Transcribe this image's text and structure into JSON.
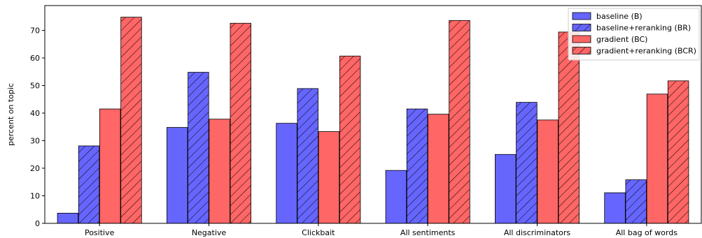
{
  "chart_data": {
    "type": "bar",
    "title": "",
    "xlabel": "",
    "ylabel": "percent on topic",
    "ylim": [
      0,
      79
    ],
    "yticks": [
      0,
      10,
      20,
      30,
      40,
      50,
      60,
      70
    ],
    "grid": false,
    "legend_position": "top-right",
    "categories": [
      "Positive",
      "Negative",
      "Clickbait",
      "All sentiments",
      "All discriminators",
      "All bag of words"
    ],
    "series": [
      {
        "name": "baseline (B)",
        "color": "#6666ff",
        "hatch": false,
        "values": [
          3.7,
          34.8,
          36.3,
          19.2,
          25.0,
          11.1
        ]
      },
      {
        "name": "baseline+reranking (BR)",
        "color": "#6666ff",
        "hatch": true,
        "values": [
          28.1,
          54.8,
          48.9,
          41.5,
          43.9,
          15.8
        ]
      },
      {
        "name": "gradient (BC)",
        "color": "#ff6666",
        "hatch": false,
        "values": [
          41.5,
          37.8,
          33.3,
          39.6,
          37.5,
          46.9
        ]
      },
      {
        "name": "gradient+reranking (BCR)",
        "color": "#ff6666",
        "hatch": true,
        "values": [
          74.8,
          72.6,
          60.7,
          73.6,
          69.4,
          51.7
        ]
      }
    ]
  }
}
